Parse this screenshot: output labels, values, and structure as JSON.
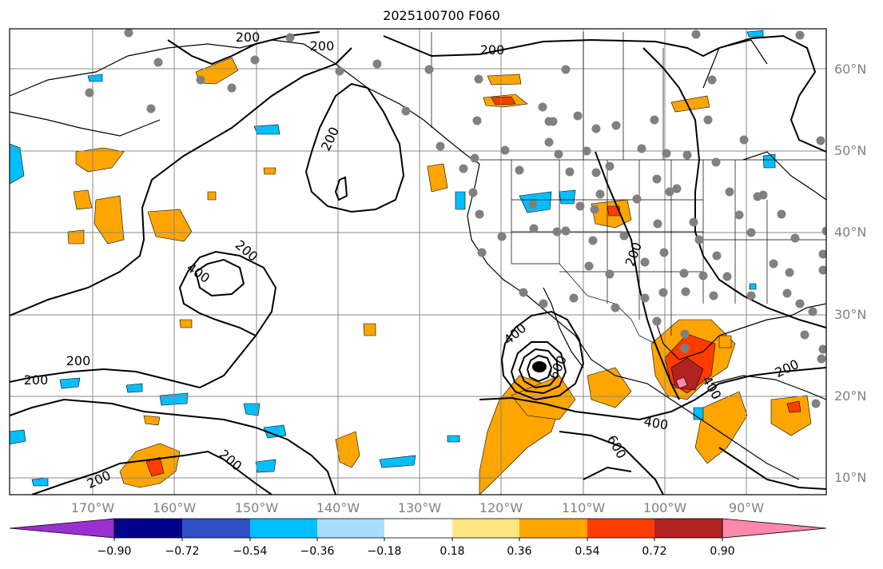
{
  "title": "2025100700 F060",
  "map": {
    "lon_range": [
      -180,
      -80
    ],
    "lat_range": [
      8,
      65
    ],
    "lat_labels": [
      "60°N",
      "50°N",
      "40°N",
      "30°N",
      "20°N",
      "10°N"
    ],
    "lon_labels": [
      "170°W",
      "160°W",
      "150°W",
      "140°W",
      "130°W",
      "120°W",
      "110°W",
      "100°W",
      "90°W"
    ],
    "contour_labels": [
      "200",
      "200",
      "200",
      "200",
      "200",
      "200",
      "200",
      "200",
      "200",
      "200",
      "200",
      "400",
      "400",
      "400",
      "400",
      "600",
      "600"
    ],
    "gridline_color": "#888888",
    "station_color": "#808080"
  },
  "colorbar": {
    "tick_labels": [
      "−0.90",
      "−0.72",
      "−0.54",
      "−0.36",
      "−0.18",
      "0.18",
      "0.36",
      "0.54",
      "0.72",
      "0.90"
    ],
    "colors": [
      "#9b30d0",
      "#00008b",
      "#3050c8",
      "#00bfff",
      "#aadcff",
      "#ffffff",
      "#ffe680",
      "#ffa500",
      "#ff3c00",
      "#b22222",
      "#ff88aa"
    ]
  }
}
